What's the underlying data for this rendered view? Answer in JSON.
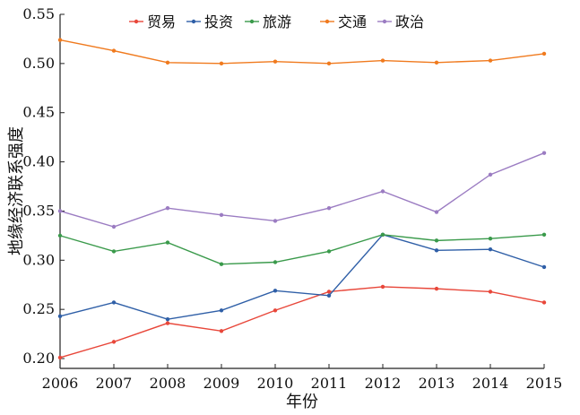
{
  "chart_data": {
    "type": "line",
    "title": "",
    "xlabel": "年份",
    "ylabel": "地缘经济联系强度",
    "x": [
      2006,
      2007,
      2008,
      2009,
      2010,
      2011,
      2012,
      2013,
      2014,
      2015
    ],
    "xlim": [
      2006,
      2015
    ],
    "ylim": [
      0.19,
      0.55
    ],
    "yticks": [
      0.2,
      0.25,
      0.3,
      0.35,
      0.4,
      0.45,
      0.5,
      0.55
    ],
    "ytick_labels": [
      "0.20",
      "0.25",
      "0.30",
      "0.35",
      "0.40",
      "0.45",
      "0.50",
      "0.55"
    ],
    "xtick_labels": [
      "2006",
      "2007",
      "2008",
      "2009",
      "2010",
      "2011",
      "2012",
      "2013",
      "2014",
      "2015"
    ],
    "grid": false,
    "legend_position": "top",
    "series": [
      {
        "name": "贸易",
        "color": "#e8473a",
        "values": [
          0.201,
          0.217,
          0.236,
          0.228,
          0.249,
          0.268,
          0.273,
          0.271,
          0.268,
          0.257
        ]
      },
      {
        "name": "投资",
        "color": "#2f5fa7",
        "values": [
          0.243,
          0.257,
          0.24,
          0.249,
          0.269,
          0.264,
          0.326,
          0.31,
          0.311,
          0.293
        ]
      },
      {
        "name": "旅游",
        "color": "#3a9a4b",
        "values": [
          0.325,
          0.309,
          0.318,
          0.296,
          0.298,
          0.309,
          0.326,
          0.32,
          0.322,
          0.326
        ]
      },
      {
        "name": "交通",
        "color": "#f07a1e",
        "values": [
          0.524,
          0.513,
          0.501,
          0.5,
          0.502,
          0.5,
          0.503,
          0.501,
          0.503,
          0.51
        ]
      },
      {
        "name": "政治",
        "color": "#9b7cc2",
        "values": [
          0.35,
          0.334,
          0.353,
          0.346,
          0.34,
          0.353,
          0.37,
          0.349,
          0.387,
          0.409
        ]
      }
    ]
  }
}
